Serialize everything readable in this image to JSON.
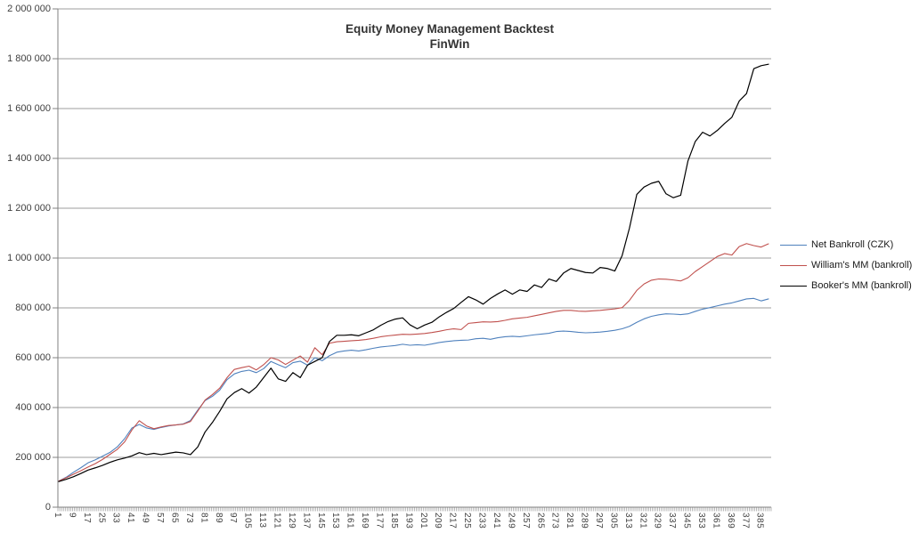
{
  "chart_data": {
    "type": "line",
    "title": "Equity Money Management Backtest",
    "subtitle": "FinWin",
    "grid": true,
    "legend_position": "right",
    "colors": {
      "gridline": "#9c9c9c",
      "axis": "#808080",
      "tick": "#7f7f7f",
      "label_text": "#404040",
      "title_text": "#333333"
    },
    "x_axis": {
      "min": 1,
      "max": 390,
      "label_step": 8,
      "labels": [
        "1",
        "9",
        "17",
        "25",
        "33",
        "41",
        "49",
        "57",
        "65",
        "73",
        "81",
        "89",
        "97",
        "105",
        "113",
        "121",
        "129",
        "137",
        "145",
        "153",
        "161",
        "169",
        "177",
        "185",
        "193",
        "201",
        "209",
        "217",
        "225",
        "233",
        "241",
        "249",
        "257",
        "265",
        "273",
        "281",
        "289",
        "297",
        "305",
        "313",
        "321",
        "329",
        "337",
        "345",
        "353",
        "361",
        "369",
        "377",
        "385"
      ]
    },
    "y_axis": {
      "min": 0,
      "max": 2000000,
      "tick_interval": 200000,
      "tick_labels": [
        "0",
        "200 000",
        "400 000",
        "600 000",
        "800 000",
        "1 000 000",
        "1 200 000",
        "1 400 000",
        "1 600 000",
        "1 800 000",
        "2 000 000"
      ]
    },
    "x": [
      1,
      5,
      9,
      13,
      17,
      21,
      25,
      29,
      33,
      37,
      41,
      45,
      49,
      53,
      57,
      61,
      65,
      69,
      73,
      77,
      81,
      85,
      89,
      93,
      97,
      101,
      105,
      109,
      113,
      117,
      121,
      125,
      129,
      133,
      137,
      141,
      145,
      149,
      153,
      157,
      161,
      165,
      169,
      173,
      177,
      181,
      185,
      189,
      193,
      197,
      201,
      205,
      209,
      213,
      217,
      221,
      225,
      229,
      233,
      237,
      241,
      245,
      249,
      253,
      257,
      261,
      265,
      269,
      273,
      277,
      281,
      285,
      289,
      293,
      297,
      301,
      305,
      309,
      313,
      317,
      321,
      325,
      329,
      333,
      337,
      341,
      345,
      349,
      353,
      357,
      361,
      365,
      369,
      373,
      377,
      381,
      385,
      389
    ],
    "series": [
      {
        "name": "Net Bankroll (CZK)",
        "color": "#4F81BD",
        "width": 1.1,
        "values": [
          105000,
          120000,
          140000,
          158000,
          178000,
          190000,
          205000,
          220000,
          242000,
          275000,
          318000,
          332000,
          318000,
          312000,
          320000,
          326000,
          330000,
          334000,
          348000,
          390000,
          428000,
          445000,
          470000,
          512000,
          535000,
          545000,
          550000,
          540000,
          556000,
          585000,
          572000,
          560000,
          580000,
          586000,
          570000,
          600000,
          588000,
          608000,
          622000,
          627000,
          630000,
          627000,
          632000,
          638000,
          643000,
          646000,
          649000,
          654000,
          650000,
          652000,
          650000,
          655000,
          661000,
          665000,
          668000,
          670000,
          671000,
          676000,
          678000,
          674000,
          680000,
          684000,
          686000,
          684000,
          688000,
          692000,
          695000,
          698000,
          705000,
          707000,
          705000,
          702000,
          700000,
          701000,
          703000,
          706000,
          710000,
          716000,
          726000,
          742000,
          756000,
          766000,
          772000,
          776000,
          775000,
          773000,
          776000,
          786000,
          795000,
          801000,
          808000,
          815000,
          820000,
          828000,
          836000,
          838000,
          828000,
          836000
        ]
      },
      {
        "name": "William's MM (bankroll)",
        "color": "#C0504D",
        "width": 1.1,
        "values": [
          105000,
          118000,
          132000,
          146000,
          161000,
          175000,
          192000,
          212000,
          232000,
          262000,
          310000,
          347000,
          326000,
          315000,
          322000,
          328000,
          330000,
          333000,
          344000,
          386000,
          430000,
          452000,
          478000,
          520000,
          553000,
          560000,
          566000,
          551000,
          572000,
          600000,
          591000,
          573000,
          590000,
          607000,
          582000,
          640000,
          612000,
          658000,
          664000,
          666000,
          668000,
          670000,
          673000,
          678000,
          684000,
          688000,
          691000,
          694000,
          693000,
          695000,
          697000,
          701000,
          706000,
          712000,
          716000,
          713000,
          738000,
          741000,
          744000,
          743000,
          745000,
          750000,
          756000,
          759000,
          762000,
          768000,
          774000,
          780000,
          786000,
          790000,
          790000,
          787000,
          786000,
          788000,
          790000,
          793000,
          796000,
          801000,
          830000,
          870000,
          896000,
          911000,
          916000,
          915000,
          912000,
          908000,
          921000,
          946000,
          966000,
          986000,
          1006000,
          1018000,
          1012000,
          1046000,
          1058000,
          1050000,
          1044000,
          1057000
        ]
      },
      {
        "name": "Booker's MM (bankroll)",
        "color": "#000000",
        "width": 1.2,
        "values": [
          103000,
          112000,
          122000,
          135000,
          149000,
          158000,
          168000,
          180000,
          190000,
          197000,
          206000,
          219000,
          211000,
          216000,
          211000,
          216000,
          221000,
          218000,
          211000,
          242000,
          302000,
          340000,
          385000,
          435000,
          460000,
          476000,
          458000,
          482000,
          520000,
          558000,
          515000,
          505000,
          540000,
          520000,
          570000,
          585000,
          600000,
          665000,
          690000,
          690000,
          692000,
          688000,
          700000,
          712000,
          730000,
          745000,
          755000,
          760000,
          732000,
          716000,
          731000,
          742000,
          764000,
          782000,
          798000,
          822000,
          845000,
          832000,
          815000,
          838000,
          856000,
          872000,
          855000,
          872000,
          866000,
          892000,
          882000,
          916000,
          906000,
          940000,
          958000,
          950000,
          942000,
          940000,
          962000,
          958000,
          948000,
          1010000,
          1120000,
          1255000,
          1285000,
          1300000,
          1308000,
          1258000,
          1242000,
          1252000,
          1390000,
          1468000,
          1505000,
          1490000,
          1512000,
          1540000,
          1565000,
          1630000,
          1660000,
          1760000,
          1772000,
          1778000
        ]
      }
    ]
  }
}
